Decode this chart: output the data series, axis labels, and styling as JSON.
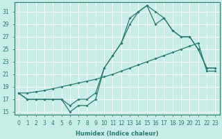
{
  "xlabel": "Humidex (Indice chaleur)",
  "x": [
    0,
    1,
    2,
    3,
    4,
    5,
    6,
    7,
    8,
    9,
    10,
    11,
    12,
    13,
    14,
    15,
    16,
    17,
    18,
    19,
    20,
    21,
    22,
    23
  ],
  "line1": [
    18,
    17,
    17,
    17,
    17,
    17,
    15,
    16,
    16,
    17,
    22,
    24,
    26,
    30,
    31,
    32,
    29,
    30,
    28,
    27,
    27,
    25,
    22,
    22
  ],
  "line2": [
    18,
    17,
    17,
    17,
    17,
    17,
    16,
    17,
    17,
    18,
    22,
    24,
    26,
    29,
    31,
    32,
    31,
    30,
    28,
    27,
    27,
    25,
    22,
    22
  ],
  "line3": [
    18,
    18,
    18.2,
    18.4,
    18.7,
    19.0,
    19.3,
    19.6,
    19.9,
    20.2,
    20.6,
    21.0,
    21.5,
    22.0,
    22.5,
    23.0,
    23.5,
    24.0,
    24.5,
    25.0,
    25.5,
    26.0,
    21.5,
    21.5
  ],
  "bg_color": "#c8ece6",
  "line_color": "#2a7a6e",
  "grid_color": "#ffffff",
  "ylim": [
    14.5,
    32.5
  ],
  "yticks": [
    15,
    17,
    19,
    21,
    23,
    25,
    27,
    29,
    31
  ],
  "xlim": [
    -0.5,
    23.5
  ],
  "marker": "D",
  "markersize": 2.0,
  "linewidth": 0.9,
  "xlabel_fontsize": 6.0,
  "tick_fontsize": 5.5
}
